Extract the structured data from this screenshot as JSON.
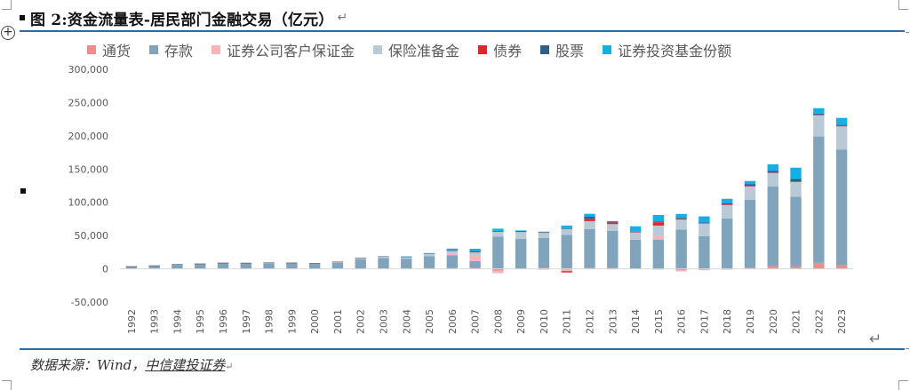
{
  "header": {
    "figure_title": "图 2:资金流量表-居民部门金融交易（亿元）",
    "return_mark": "↵"
  },
  "source": {
    "prefix": "数据来源：Wind，",
    "org": "中信建投证券",
    "suffix": "↵"
  },
  "end_mark": "↵",
  "chart_data": {
    "type": "bar",
    "stacked": true,
    "title": "图 2:资金流量表-居民部门金融交易（亿元）",
    "xlabel": "",
    "ylabel": "",
    "ylim": [
      -50000,
      300000
    ],
    "yticks": [
      -50000,
      0,
      50000,
      100000,
      150000,
      200000,
      250000,
      300000
    ],
    "ytick_labels": [
      "-50,000",
      "0",
      "50,000",
      "100,000",
      "150,000",
      "200,000",
      "250,000",
      "300,000"
    ],
    "grid": false,
    "legend_position": "top",
    "categories": [
      "1992",
      "1993",
      "1994",
      "1995",
      "1996",
      "1997",
      "1998",
      "1999",
      "2000",
      "2001",
      "2002",
      "2003",
      "2004",
      "2005",
      "2006",
      "2007",
      "2008",
      "2009",
      "2010",
      "2011",
      "2012",
      "2013",
      "2014",
      "2015",
      "2016",
      "2017",
      "2018",
      "2019",
      "2020",
      "2021",
      "2022",
      "2023"
    ],
    "series": [
      {
        "name": "通货",
        "color": "#f08c8c",
        "values": [
          300,
          300,
          400,
          400,
          500,
          500,
          500,
          500,
          500,
          500,
          600,
          800,
          800,
          900,
          1000,
          1300,
          -3000,
          800,
          1500,
          -1500,
          1200,
          1200,
          600,
          -1000,
          -2000,
          -1200,
          800,
          2000,
          4000,
          3500,
          9000,
          5500
        ]
      },
      {
        "name": "存款",
        "color": "#7fa4bc",
        "values": [
          3000,
          4300,
          6000,
          6900,
          8000,
          7800,
          8000,
          7700,
          7000,
          8500,
          13500,
          15200,
          14400,
          18000,
          19500,
          10400,
          48500,
          44000,
          45000,
          51000,
          58500,
          56000,
          43000,
          44000,
          59000,
          49000,
          75000,
          102000,
          120000,
          105000,
          190000,
          174000
        ]
      },
      {
        "name": "证券公司客户保证金",
        "color": "#f7b4b8",
        "values": [
          0,
          0,
          0,
          0,
          0,
          0,
          0,
          0,
          0,
          0,
          0,
          0,
          0,
          0,
          2000,
          8500,
          -3500,
          0,
          -1500,
          -2000,
          0,
          -800,
          500,
          5000,
          -2000,
          -1000,
          -1500,
          0,
          0,
          0,
          0,
          0
        ]
      },
      {
        "name": "保险准备金",
        "color": "#b9c9d6",
        "values": [
          200,
          200,
          300,
          300,
          400,
          500,
          800,
          800,
          1000,
          1500,
          2000,
          2600,
          3000,
          4300,
          5200,
          5000,
          7500,
          11000,
          8000,
          9000,
          12000,
          10000,
          11000,
          16000,
          15000,
          19000,
          20000,
          20000,
          20000,
          22000,
          32000,
          35000
        ]
      },
      {
        "name": "债券",
        "color": "#e1262a",
        "values": [
          100,
          100,
          100,
          100,
          100,
          100,
          100,
          100,
          100,
          100,
          100,
          100,
          100,
          100,
          100,
          200,
          300,
          300,
          200,
          -2000,
          3500,
          2500,
          300,
          5000,
          1000,
          800,
          1000,
          500,
          600,
          1000,
          500,
          400
        ]
      },
      {
        "name": "股票",
        "color": "#2f5f86",
        "values": [
          100,
          100,
          100,
          100,
          100,
          100,
          100,
          100,
          100,
          100,
          100,
          100,
          100,
          100,
          100,
          1200,
          700,
          800,
          500,
          1000,
          3000,
          1500,
          500,
          1000,
          1500,
          1000,
          1500,
          3000,
          2500,
          3500,
          2000,
          1500
        ]
      },
      {
        "name": "证券投资基金份额",
        "color": "#12b0e6",
        "values": [
          0,
          0,
          0,
          0,
          0,
          0,
          0,
          0,
          0,
          0,
          0,
          0,
          200,
          300,
          2500,
          3500,
          3300,
          800,
          700,
          4000,
          4500,
          500,
          8000,
          10000,
          6000,
          9000,
          7000,
          4500,
          10000,
          17000,
          8000,
          10500
        ]
      }
    ]
  }
}
